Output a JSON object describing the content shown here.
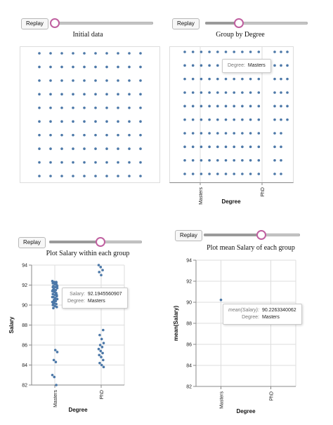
{
  "controls": {
    "replay_label": "Replay"
  },
  "colors": {
    "point": "#4c78a8",
    "grid": "#dddddd",
    "axis": "#888888",
    "knob": "#c060a0"
  },
  "panels": [
    {
      "title": "Initial data",
      "slider_value": 0.0,
      "tooltip": null
    },
    {
      "title": "Group by Degree",
      "slider_value": 0.33,
      "tooltip": {
        "rows": [
          {
            "key": "Degree:",
            "value": "Masters"
          }
        ]
      }
    },
    {
      "title": "Plot Salary within each group",
      "slider_value": 0.55,
      "tooltip": {
        "rows": [
          {
            "key": "Salary:",
            "value": "92.1945560907"
          },
          {
            "key": "Degree:",
            "value": "Masters"
          }
        ]
      }
    },
    {
      "title": "Plot mean Salary of each group",
      "slider_value": 0.6,
      "tooltip": {
        "rows": [
          {
            "key": "mean(Salary):",
            "value": "90.2263340062",
            "italic": true
          },
          {
            "key": "Degree:",
            "value": "Masters"
          }
        ]
      }
    }
  ],
  "chart_data": [
    {
      "type": "scatter",
      "title": "Initial data",
      "layout": "grid",
      "rows": 10,
      "cols": 10,
      "xlabel": "",
      "ylabel": ""
    },
    {
      "type": "scatter",
      "title": "Group by Degree",
      "xlabel": "Degree",
      "ylabel": "",
      "categories": [
        "Masters",
        "PhD"
      ],
      "groups": [
        {
          "category": "Masters",
          "rows": 10,
          "cols": 10
        },
        {
          "category": "PhD",
          "rows": 10,
          "cols": 3
        }
      ]
    },
    {
      "type": "scatter",
      "title": "Plot Salary within each group",
      "xlabel": "Degree",
      "ylabel": "Salary",
      "ylim": [
        82,
        94
      ],
      "yticks": [
        82,
        84,
        86,
        88,
        90,
        92,
        94
      ],
      "categories": [
        "Masters",
        "PhD"
      ],
      "series": [
        {
          "category": "Masters",
          "values": [
            92.4,
            92.3,
            92.2,
            92.19,
            92.1,
            92.0,
            91.9,
            91.8,
            91.7,
            91.6,
            91.5,
            91.4,
            91.3,
            91.2,
            91.1,
            91.0,
            90.9,
            90.8,
            90.7,
            90.6,
            90.5,
            90.4,
            90.3,
            90.2,
            90.1,
            90.0,
            89.9,
            89.8,
            89.7,
            92.1,
            91.9,
            91.6,
            91.2,
            90.8,
            90.4,
            92.3,
            91.8,
            91.4,
            90.9,
            90.1,
            85.5,
            85.3,
            84.5,
            84.3,
            83.0,
            82.8,
            82.0,
            91.5,
            90.6,
            91.0
          ]
        },
        {
          "category": "PhD",
          "values": [
            94.0,
            93.8,
            93.5,
            93.3,
            93.0,
            87.5,
            87.0,
            86.6,
            86.2,
            86.0,
            85.8,
            85.6,
            85.4,
            85.2,
            85.0,
            84.8,
            84.5,
            84.2,
            84.0,
            83.8
          ]
        }
      ]
    },
    {
      "type": "scatter",
      "title": "Plot mean Salary of each group",
      "xlabel": "Degree",
      "ylabel": "mean(Salary)",
      "ylim": [
        82,
        94
      ],
      "yticks": [
        82,
        84,
        86,
        88,
        90,
        92,
        94
      ],
      "categories": [
        "Masters",
        "PhD"
      ],
      "series": [
        {
          "category": "Masters",
          "values": [
            90.2263340062
          ]
        }
      ]
    }
  ]
}
